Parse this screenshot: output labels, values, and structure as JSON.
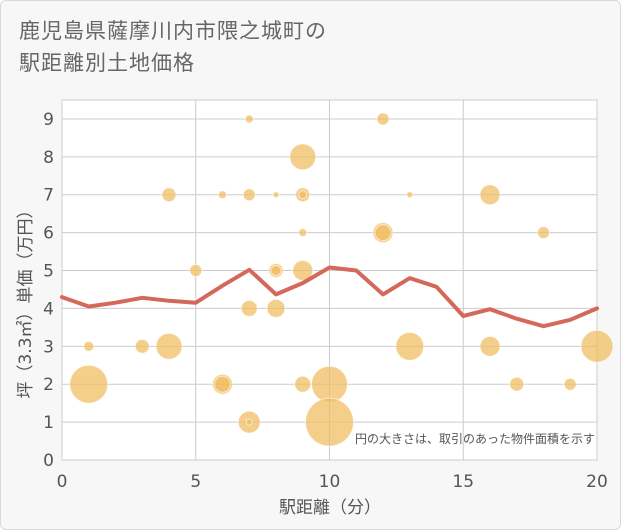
{
  "chart_data": {
    "type": "scatter",
    "title_line1": "鹿児島県薩摩川内市隈之城町の",
    "title_line2": "駅距離別土地価格",
    "xlabel": "駅距離（分）",
    "ylabel": "坪（3.3㎡）単価（万円）",
    "xlim": [
      0,
      20
    ],
    "ylim": [
      0,
      9.5
    ],
    "x_ticks": [
      0,
      5,
      10,
      15,
      20
    ],
    "y_ticks": [
      0,
      1,
      2,
      3,
      4,
      5,
      6,
      7,
      8,
      9
    ],
    "grid": true,
    "note": "円の大きさは、取引のあった物件面積を示す",
    "bubble_color": "#f0bc5e",
    "line_color": "#d4685a",
    "points": [
      {
        "x": 7,
        "y": 9,
        "size": 4
      },
      {
        "x": 12,
        "y": 9,
        "size": 6
      },
      {
        "x": 9,
        "y": 8,
        "size": 13
      },
      {
        "x": 4,
        "y": 7,
        "size": 7
      },
      {
        "x": 6,
        "y": 7,
        "size": 4
      },
      {
        "x": 7,
        "y": 7,
        "size": 6
      },
      {
        "x": 8,
        "y": 7,
        "size": 3
      },
      {
        "x": 9,
        "y": 7,
        "size": 7
      },
      {
        "x": 9,
        "y": 7,
        "size": 4
      },
      {
        "x": 13,
        "y": 7,
        "size": 3
      },
      {
        "x": 16,
        "y": 7,
        "size": 10
      },
      {
        "x": 9,
        "y": 6,
        "size": 4
      },
      {
        "x": 12,
        "y": 6,
        "size": 10
      },
      {
        "x": 12,
        "y": 6,
        "size": 8
      },
      {
        "x": 18,
        "y": 6,
        "size": 6
      },
      {
        "x": 5,
        "y": 5,
        "size": 6
      },
      {
        "x": 8,
        "y": 5,
        "size": 7
      },
      {
        "x": 8,
        "y": 5,
        "size": 5
      },
      {
        "x": 9,
        "y": 5,
        "size": 10
      },
      {
        "x": 7,
        "y": 4,
        "size": 8
      },
      {
        "x": 8,
        "y": 4,
        "size": 9
      },
      {
        "x": 1,
        "y": 3,
        "size": 5
      },
      {
        "x": 3,
        "y": 3,
        "size": 7
      },
      {
        "x": 4,
        "y": 3,
        "size": 13
      },
      {
        "x": 13,
        "y": 3,
        "size": 14
      },
      {
        "x": 16,
        "y": 3,
        "size": 10
      },
      {
        "x": 20,
        "y": 3,
        "size": 16
      },
      {
        "x": 1,
        "y": 2,
        "size": 19
      },
      {
        "x": 6,
        "y": 2,
        "size": 10
      },
      {
        "x": 6,
        "y": 2,
        "size": 8
      },
      {
        "x": 9,
        "y": 2,
        "size": 8
      },
      {
        "x": 10,
        "y": 2,
        "size": 18
      },
      {
        "x": 17,
        "y": 2,
        "size": 7
      },
      {
        "x": 19,
        "y": 2,
        "size": 6
      },
      {
        "x": 7,
        "y": 1,
        "size": 11
      },
      {
        "x": 7,
        "y": 1,
        "size": 3
      },
      {
        "x": 10,
        "y": 1,
        "size": 24
      }
    ],
    "trend": {
      "x": [
        0,
        1,
        2,
        3,
        4,
        5,
        6,
        7,
        8,
        9,
        10,
        11,
        12,
        13,
        14,
        15,
        16,
        17,
        18,
        19,
        20
      ],
      "y": [
        4.3,
        4.05,
        4.15,
        4.28,
        4.2,
        4.15,
        4.6,
        5.02,
        4.37,
        4.67,
        5.08,
        5.0,
        4.37,
        4.8,
        4.57,
        3.8,
        3.98,
        3.73,
        3.53,
        3.7,
        4.0
      ]
    }
  }
}
